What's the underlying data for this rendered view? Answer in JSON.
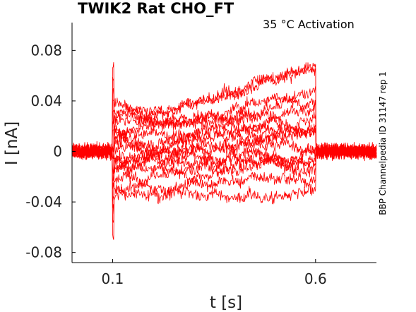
{
  "chart_data": {
    "type": "line",
    "title": "TWIK2  Rat  CHO_FT",
    "annotation": "35 °C  Activation",
    "side_label": "BBP Channelpedia ID 31147 rep 1",
    "xlabel": "t [s]",
    "ylabel": "I [nA]",
    "xlim": [
      0.0,
      0.75
    ],
    "ylim": [
      -0.088,
      0.102
    ],
    "x_ticks": [
      0.1,
      0.6
    ],
    "x_tick_labels": [
      "0.1",
      "0.6"
    ],
    "y_ticks": [
      0.08,
      0.04,
      0,
      -0.04,
      -0.08
    ],
    "y_tick_labels": [
      "0.08",
      "0.04",
      "0",
      "-0.04",
      "-0.08"
    ],
    "grid": false,
    "legend": "none",
    "line_color": "#ff0000",
    "step_window": [
      0.1,
      0.6
    ],
    "baseline_noise_nA": 0.005,
    "series": [
      {
        "start": -0.035,
        "end": -0.035
      },
      {
        "start": -0.028,
        "end": -0.018
      },
      {
        "start": -0.02,
        "end": -0.01
      },
      {
        "start": -0.015,
        "end": -0.005
      },
      {
        "start": -0.01,
        "end": 0.0
      },
      {
        "start": -0.006,
        "end": 0.004
      },
      {
        "start": -0.002,
        "end": 0.008
      },
      {
        "start": 0.002,
        "end": 0.012
      },
      {
        "start": 0.006,
        "end": 0.018
      },
      {
        "start": 0.01,
        "end": 0.024
      },
      {
        "start": 0.014,
        "end": 0.03
      },
      {
        "start": 0.018,
        "end": 0.036
      },
      {
        "start": 0.022,
        "end": 0.042
      },
      {
        "start": 0.026,
        "end": 0.05
      },
      {
        "start": 0.03,
        "end": 0.062
      },
      {
        "start": 0.034,
        "end": 0.075
      }
    ]
  }
}
